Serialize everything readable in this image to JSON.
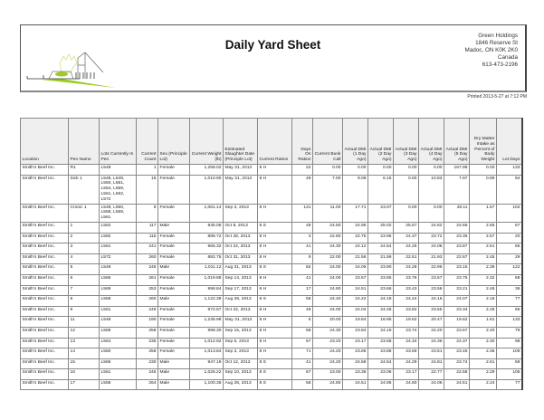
{
  "header": {
    "title": "Daily Yard Sheet",
    "company": [
      "Green Holdings",
      "1846 Reserve St",
      "Madoc, ON  K0K 2K0",
      "Canada",
      "613-473-2196"
    ],
    "printed": "Printed 2013-5-27 at 7:12 PM",
    "logo_colors": {
      "accent": "#9acd1e",
      "outline": "#555555"
    }
  },
  "table": {
    "columns": [
      "Location",
      "Pen Name",
      "Lots Currently In Pen",
      "Current Count",
      "Sex (Principle Lot)",
      "Current Weight (lb)",
      "Estimated Slaughter Date (Principle Lot)",
      "Current Ration",
      "Days On Ration",
      "Current Bunk Call",
      "Actual DMI (1 Day Ago)",
      "Actual DMI (2 Day Ago)",
      "Actual DMI (3 Day Ago)",
      "Actual DMI (4 Day Ago)",
      "Actual DMI (5 Day Ago)",
      "Dry Matter Intake as Percent of Body Weight",
      "Lot Days"
    ],
    "rows": [
      [
        "Smith's Beef Inc.",
        "R1",
        "L548",
        "1",
        "Female",
        "1,258.02",
        "May 31, 2013",
        "8 H",
        "22",
        "0.00",
        "0.00",
        "0.00",
        "0.00",
        "0.00",
        "167.98",
        "0.00",
        "133"
      ],
      [
        "Smith's Beef Inc.",
        "Sick 1",
        "L548, L549, L550, L551, L554, L559, L561, L562, L572",
        "18",
        "Female",
        "1,010.90",
        "May 31, 2013",
        "8 H",
        "49",
        "7.00",
        "9.08",
        "6.15",
        "0.00",
        "10.83",
        "7.97",
        "0.89",
        "94"
      ],
      [
        "Smith's Beef Inc.",
        "Cronic 1",
        "L548, L550, L558, L559, L561",
        "8",
        "Female",
        "1,061.14",
        "Sep 3, 2013",
        "8 H",
        "131",
        "11.00",
        "17.71",
        "23.07",
        "0.00",
        "0.00",
        "48.11",
        "1.67",
        "102"
      ],
      [
        "Smith's Beef Inc.",
        "1",
        "L562",
        "117",
        "Male",
        "945.06",
        "Oct 8, 2013",
        "8 S",
        "49",
        "24.50",
        "24.95",
        "25.02",
        "25.57",
        "24.62",
        "24.66",
        "2.65",
        "67"
      ],
      [
        "Smith's Beef Inc.",
        "2",
        "L582",
        "115",
        "Female",
        "888.72",
        "Oct 28, 2013",
        "8 H",
        "3",
        "22.80",
        "22.75",
        "23.95",
        "24.37",
        "23.72",
        "23.36",
        "2.57",
        "20"
      ],
      [
        "Smith's Beef Inc.",
        "3",
        "L561",
        "241",
        "Female",
        "965.32",
        "Oct 22, 2013",
        "8 H",
        "41",
        "24.30",
        "24.12",
        "24.54",
        "24.25",
        "24.08",
        "23.87",
        "2.51",
        "65"
      ],
      [
        "Smith's Beef Inc.",
        "4",
        "L572",
        "260",
        "Female",
        "882.75",
        "Oct 31, 2013",
        "8 H",
        "9",
        "22.00",
        "21.56",
        "21.59",
        "22.51",
        "21.93",
        "22.67",
        "2.45",
        "29"
      ],
      [
        "Smith's Beef Inc.",
        "5",
        "L549",
        "246",
        "Male",
        "1,011.12",
        "Aug 31, 2013",
        "8 S",
        "82",
        "24.00",
        "24.05",
        "23.90",
        "24.28",
        "22.96",
        "23.15",
        "2.39",
        "122"
      ],
      [
        "Smith's Beef Inc.",
        "6",
        "L566",
        "261",
        "Female",
        "1,019.88",
        "Sep 14, 2013",
        "8 H",
        "41",
        "24.00",
        "23.57",
        "23.65",
        "23.76",
        "23.57",
        "23.75",
        "2.32",
        "58"
      ],
      [
        "Smith's Beef Inc.",
        "7",
        "L569",
        "253",
        "Female",
        "998.84",
        "Sep 17, 2013",
        "8 H",
        "17",
        "24.80",
        "24.51",
        "23.66",
        "23.43",
        "23.56",
        "23.21",
        "2.46",
        "36"
      ],
      [
        "Smith's Beef Inc.",
        "8",
        "L558",
        "260",
        "Male",
        "1,122.39",
        "Aug 28, 2013",
        "8 S",
        "58",
        "24.40",
        "24.22",
        "24.19",
        "24.24",
        "24.16",
        "24.07",
        "2.16",
        "77"
      ],
      [
        "Smith's Beef Inc.",
        "9",
        "L561",
        "249",
        "Female",
        "972.57",
        "Oct 22, 2013",
        "8 H",
        "49",
        "24.00",
        "24.04",
        "24.48",
        "23.82",
        "23.55",
        "23.34",
        "2.48",
        "65"
      ],
      [
        "Smith's Beef Inc.",
        "11",
        "L548",
        "190",
        "Female",
        "1,235.98",
        "May 31, 2013",
        "8 H",
        "5",
        "20.00",
        "19.84",
        "18.95",
        "19.62",
        "20.47",
        "19.62",
        "1.61",
        "133"
      ],
      [
        "Smith's Beef Inc.",
        "12",
        "L559",
        "258",
        "Female",
        "998.30",
        "Sep 15, 2013",
        "8 H",
        "58",
        "24.30",
        "23.84",
        "24.19",
        "23.74",
        "24.20",
        "23.67",
        "2.40",
        "79"
      ],
      [
        "Smith's Beef Inc.",
        "13",
        "L554",
        "235",
        "Female",
        "1,012.92",
        "Sep 5, 2013",
        "8 H",
        "67",
        "23.20",
        "23.17",
        "23.58",
        "24.34",
        "24.36",
        "24.37",
        "2.30",
        "98"
      ],
      [
        "Smith's Beef Inc.",
        "14",
        "L550",
        "258",
        "Female",
        "1,013.84",
        "Sep 3, 2013",
        "8 H",
        "71",
        "24.20",
        "23.85",
        "23.88",
        "23.69",
        "23.51",
        "23.45",
        "2.36",
        "109"
      ],
      [
        "Smith's Beef Inc.",
        "15",
        "L565",
        "230",
        "Male",
        "947.19",
        "Oct 12, 2013",
        "8 S",
        "41",
        "24.20",
        "24.58",
        "24.54",
        "24.29",
        "24.81",
        "23.74",
        "2.61",
        "59"
      ],
      [
        "Smith's Beef Inc.",
        "16",
        "L551",
        "245",
        "Male",
        "1,026.22",
        "Sep 10, 2013",
        "8 S",
        "67",
        "23.00",
        "23.36",
        "23.06",
        "23.17",
        "22.77",
        "22.58",
        "2.29",
        "105"
      ],
      [
        "Smith's Beef Inc.",
        "17",
        "L558",
        "264",
        "Male",
        "1,100.36",
        "Aug 28, 2013",
        "8 S",
        "58",
        "24.80",
        "24.51",
        "24.95",
        "24.80",
        "24.06",
        "24.51",
        "2.24",
        "77"
      ]
    ]
  }
}
